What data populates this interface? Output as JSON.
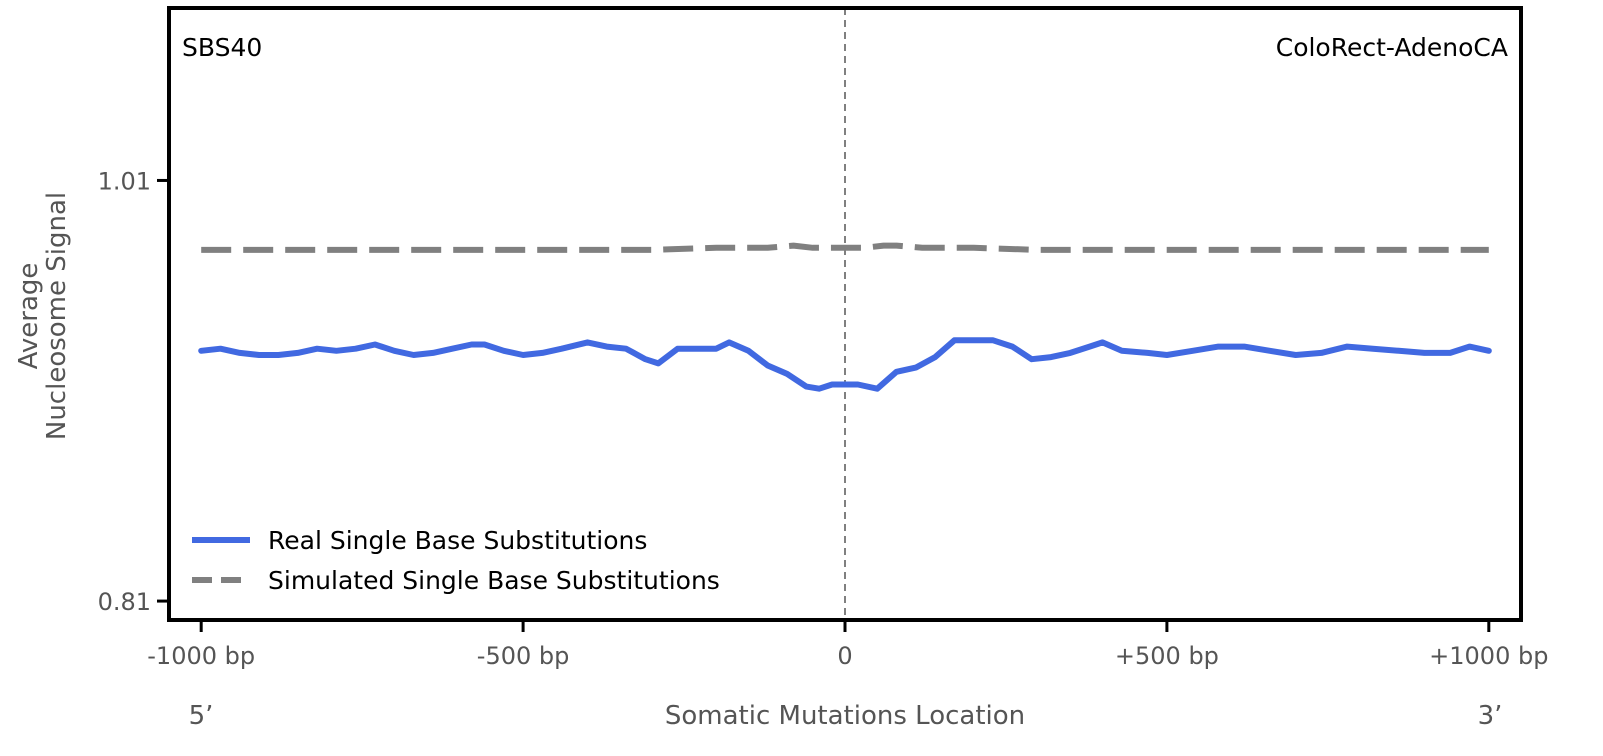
{
  "chart_data": {
    "type": "line",
    "title_left": "SBS40",
    "title_right": "ColoRect-AdenoCA",
    "xlabel": "Somatic Mutations Location",
    "ylabel_line1": "Average",
    "ylabel_line2": "Nucleosome Signal",
    "xlim": [
      -1050,
      1050
    ],
    "ylim": [
      0.801,
      1.092
    ],
    "x_ticks": [
      -1000,
      -500,
      0,
      500,
      1000
    ],
    "x_tick_labels": [
      "-1000 bp",
      "-500 bp",
      "0",
      "+500 bp",
      "+1000 bp"
    ],
    "y_ticks": [
      0.81,
      1.01
    ],
    "y_tick_labels": [
      "0.81",
      "1.01"
    ],
    "end_label_left": "5’",
    "end_label_right": "3’",
    "center_line_x": 0,
    "series": [
      {
        "name": "Real Single Base Substitutions",
        "color": "#4169E1",
        "style": "solid",
        "points": [
          [
            -1000,
            0.929
          ],
          [
            -970,
            0.93
          ],
          [
            -940,
            0.928
          ],
          [
            -910,
            0.927
          ],
          [
            -880,
            0.927
          ],
          [
            -850,
            0.928
          ],
          [
            -820,
            0.93
          ],
          [
            -790,
            0.929
          ],
          [
            -760,
            0.93
          ],
          [
            -730,
            0.932
          ],
          [
            -700,
            0.929
          ],
          [
            -670,
            0.927
          ],
          [
            -640,
            0.928
          ],
          [
            -610,
            0.93
          ],
          [
            -580,
            0.932
          ],
          [
            -560,
            0.932
          ],
          [
            -530,
            0.929
          ],
          [
            -500,
            0.927
          ],
          [
            -470,
            0.928
          ],
          [
            -440,
            0.93
          ],
          [
            -400,
            0.933
          ],
          [
            -370,
            0.931
          ],
          [
            -340,
            0.93
          ],
          [
            -310,
            0.925
          ],
          [
            -290,
            0.923
          ],
          [
            -260,
            0.93
          ],
          [
            -230,
            0.93
          ],
          [
            -200,
            0.93
          ],
          [
            -180,
            0.933
          ],
          [
            -150,
            0.929
          ],
          [
            -120,
            0.922
          ],
          [
            -90,
            0.918
          ],
          [
            -60,
            0.912
          ],
          [
            -40,
            0.911
          ],
          [
            -20,
            0.913
          ],
          [
            0,
            0.913
          ],
          [
            20,
            0.913
          ],
          [
            50,
            0.911
          ],
          [
            80,
            0.919
          ],
          [
            110,
            0.921
          ],
          [
            140,
            0.926
          ],
          [
            170,
            0.934
          ],
          [
            200,
            0.934
          ],
          [
            230,
            0.934
          ],
          [
            260,
            0.931
          ],
          [
            290,
            0.925
          ],
          [
            320,
            0.926
          ],
          [
            350,
            0.928
          ],
          [
            380,
            0.931
          ],
          [
            400,
            0.933
          ],
          [
            430,
            0.929
          ],
          [
            470,
            0.928
          ],
          [
            500,
            0.927
          ],
          [
            540,
            0.929
          ],
          [
            580,
            0.931
          ],
          [
            620,
            0.931
          ],
          [
            660,
            0.929
          ],
          [
            700,
            0.927
          ],
          [
            740,
            0.928
          ],
          [
            780,
            0.931
          ],
          [
            820,
            0.93
          ],
          [
            860,
            0.929
          ],
          [
            900,
            0.928
          ],
          [
            940,
            0.928
          ],
          [
            970,
            0.931
          ],
          [
            1000,
            0.929
          ]
        ]
      },
      {
        "name": "Simulated Single Base Substitutions",
        "color": "#808080",
        "style": "dashed",
        "points": [
          [
            -1000,
            0.977
          ],
          [
            -900,
            0.977
          ],
          [
            -800,
            0.977
          ],
          [
            -700,
            0.977
          ],
          [
            -600,
            0.977
          ],
          [
            -500,
            0.977
          ],
          [
            -400,
            0.977
          ],
          [
            -300,
            0.977
          ],
          [
            -200,
            0.978
          ],
          [
            -120,
            0.978
          ],
          [
            -80,
            0.979
          ],
          [
            -50,
            0.978
          ],
          [
            -20,
            0.978
          ],
          [
            0,
            0.978
          ],
          [
            30,
            0.978
          ],
          [
            60,
            0.979
          ],
          [
            80,
            0.979
          ],
          [
            120,
            0.978
          ],
          [
            200,
            0.978
          ],
          [
            300,
            0.977
          ],
          [
            400,
            0.977
          ],
          [
            500,
            0.977
          ],
          [
            600,
            0.977
          ],
          [
            700,
            0.977
          ],
          [
            800,
            0.977
          ],
          [
            900,
            0.977
          ],
          [
            1000,
            0.977
          ]
        ]
      }
    ],
    "legend_position": "lower-left"
  }
}
